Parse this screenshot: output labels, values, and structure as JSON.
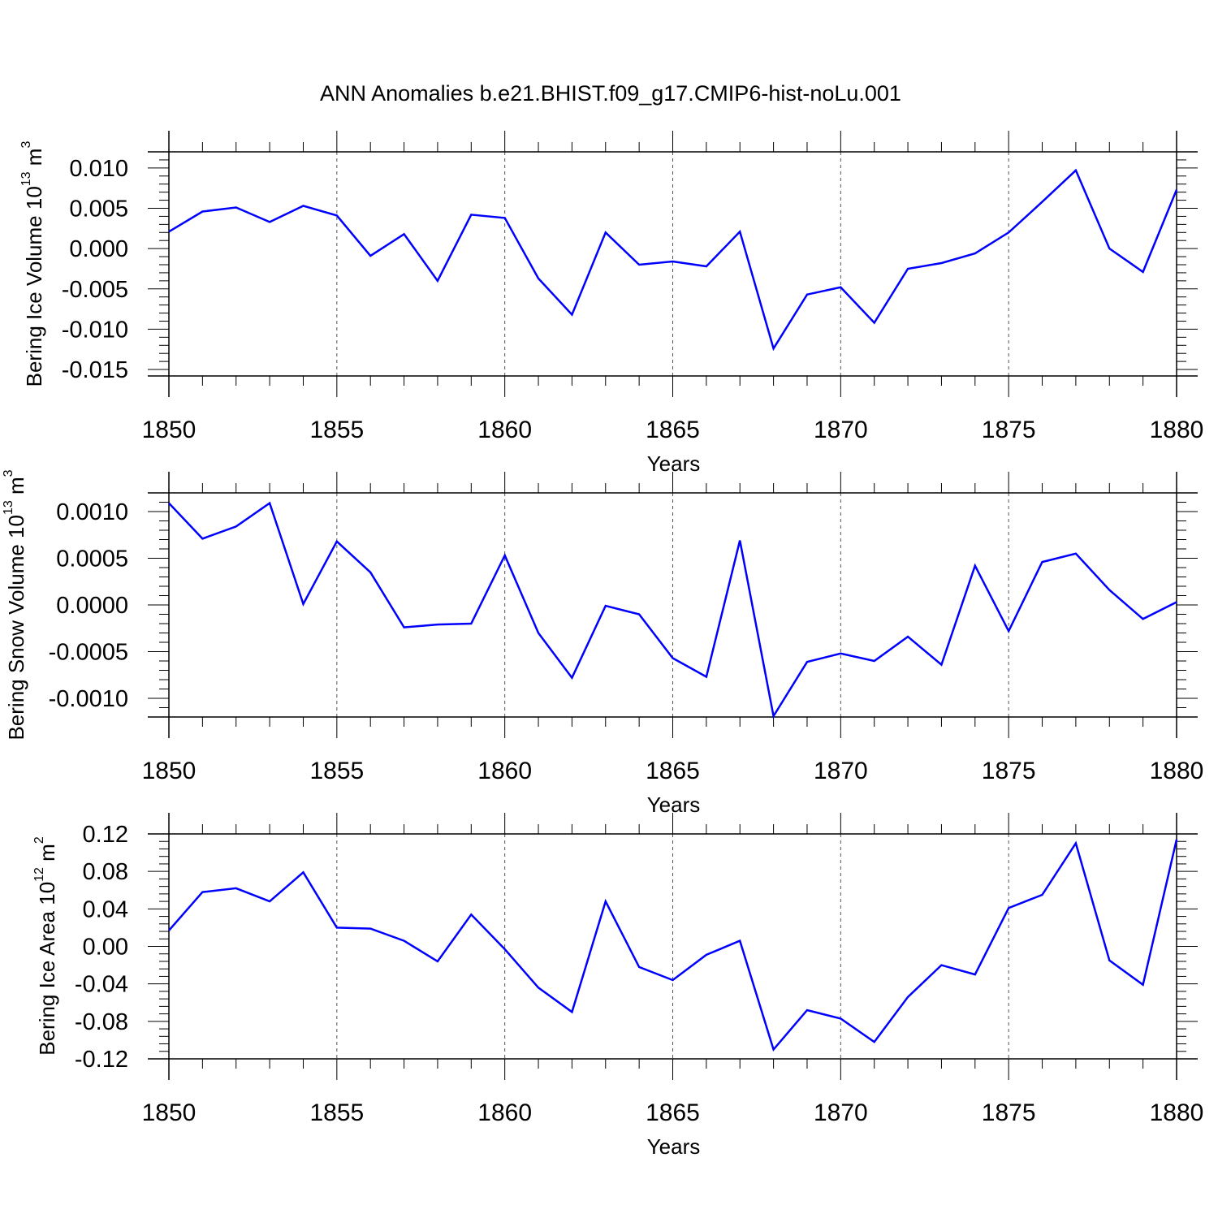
{
  "title": "ANN Anomalies b.e21.BHIST.f09_g17.CMIP6-hist-noLu.001",
  "colors": {
    "line": "#0000ff",
    "axis": "#000000",
    "grid": "#555555"
  },
  "chart_data": [
    {
      "type": "line",
      "ylabel": "Bering Ice Volume 10",
      "ylabel_sup": "13",
      "ylabel_unit": " m",
      "ylabel_unit_sup": "3",
      "xlabel": "Years",
      "xlim": [
        1850,
        1880
      ],
      "ylim": [
        -0.0158,
        0.012
      ],
      "yticks": [
        0.01,
        0.005,
        0.0,
        -0.005,
        -0.01,
        -0.015
      ],
      "ytick_labels": [
        "0.010",
        "0.005",
        "0.000",
        "-0.005",
        "-0.010",
        "-0.015"
      ],
      "xticks": [
        1850,
        1855,
        1860,
        1865,
        1870,
        1875,
        1880
      ],
      "xtick_labels": [
        "1850",
        "1855",
        "1860",
        "1865",
        "1870",
        "1875",
        "1880"
      ],
      "grid_x": true,
      "series": [
        {
          "name": "Bering Ice Volume",
          "x": [
            1850,
            1851,
            1852,
            1853,
            1854,
            1855,
            1856,
            1857,
            1858,
            1859,
            1860,
            1861,
            1862,
            1863,
            1864,
            1865,
            1866,
            1867,
            1868,
            1869,
            1870,
            1871,
            1872,
            1873,
            1874,
            1875,
            1876,
            1877,
            1878,
            1879,
            1880
          ],
          "values": [
            0.0021,
            0.0046,
            0.0051,
            0.0033,
            0.0053,
            0.0041,
            -0.0009,
            0.0018,
            -0.004,
            0.0042,
            0.0038,
            -0.0037,
            -0.0082,
            0.002,
            -0.002,
            -0.0016,
            -0.0022,
            0.0021,
            -0.0124,
            -0.0057,
            -0.0048,
            -0.0092,
            -0.0025,
            -0.0018,
            -0.0006,
            0.002,
            0.0058,
            0.0097,
            0.0,
            -0.0029,
            0.0073
          ]
        }
      ]
    },
    {
      "type": "line",
      "ylabel": "Bering Snow Volume 10",
      "ylabel_sup": "13",
      "ylabel_unit": " m",
      "ylabel_unit_sup": "3",
      "xlabel": "Years",
      "xlim": [
        1850,
        1880
      ],
      "ylim": [
        -0.0012,
        0.0012
      ],
      "yticks": [
        0.001,
        0.0005,
        0.0,
        -0.0005,
        -0.001
      ],
      "ytick_labels": [
        "0.0010",
        "0.0005",
        "0.0000",
        "-0.0005",
        "-0.0010"
      ],
      "xticks": [
        1850,
        1855,
        1860,
        1865,
        1870,
        1875,
        1880
      ],
      "xtick_labels": [
        "1850",
        "1855",
        "1860",
        "1865",
        "1870",
        "1875",
        "1880"
      ],
      "grid_x": true,
      "series": [
        {
          "name": "Bering Snow Volume",
          "x": [
            1850,
            1851,
            1852,
            1853,
            1854,
            1855,
            1856,
            1857,
            1858,
            1859,
            1860,
            1861,
            1862,
            1863,
            1864,
            1865,
            1866,
            1867,
            1868,
            1869,
            1870,
            1871,
            1872,
            1873,
            1874,
            1875,
            1876,
            1877,
            1878,
            1879,
            1880
          ],
          "values": [
            0.00109,
            0.00071,
            0.00084,
            0.00109,
            1e-05,
            0.00068,
            0.00035,
            -0.00024,
            -0.00021,
            -0.0002,
            0.00053,
            -0.0003,
            -0.00078,
            -1e-05,
            -0.0001,
            -0.00057,
            -0.00077,
            0.00069,
            -0.00119,
            -0.00061,
            -0.00052,
            -0.0006,
            -0.00034,
            -0.00064,
            0.00042,
            -0.00028,
            0.00046,
            0.00055,
            0.00016,
            -0.00015,
            3e-05
          ]
        }
      ]
    },
    {
      "type": "line",
      "ylabel": "Bering Ice Area 10",
      "ylabel_sup": "12",
      "ylabel_unit": " m",
      "ylabel_unit_sup": "2",
      "xlabel": "Years",
      "xlim": [
        1850,
        1880
      ],
      "ylim": [
        -0.12,
        0.12
      ],
      "yticks": [
        0.12,
        0.08,
        0.04,
        0.0,
        -0.04,
        -0.08,
        -0.12
      ],
      "ytick_labels": [
        "0.12",
        "0.08",
        "0.04",
        "0.00",
        "-0.04",
        "-0.08",
        "-0.12"
      ],
      "xticks": [
        1850,
        1855,
        1860,
        1865,
        1870,
        1875,
        1880
      ],
      "xtick_labels": [
        "1850",
        "1855",
        "1860",
        "1865",
        "1870",
        "1875",
        "1880"
      ],
      "grid_x": true,
      "series": [
        {
          "name": "Bering Ice Area",
          "x": [
            1850,
            1851,
            1852,
            1853,
            1854,
            1855,
            1856,
            1857,
            1858,
            1859,
            1860,
            1861,
            1862,
            1863,
            1864,
            1865,
            1866,
            1867,
            1868,
            1869,
            1870,
            1871,
            1872,
            1873,
            1874,
            1875,
            1876,
            1877,
            1878,
            1879,
            1880
          ],
          "values": [
            0.017,
            0.058,
            0.062,
            0.048,
            0.079,
            0.02,
            0.019,
            0.006,
            -0.016,
            0.034,
            -0.003,
            -0.044,
            -0.07,
            0.048,
            -0.022,
            -0.036,
            -0.009,
            0.006,
            -0.11,
            -0.068,
            -0.077,
            -0.102,
            -0.054,
            -0.02,
            -0.03,
            0.041,
            0.055,
            0.11,
            -0.015,
            -0.041,
            0.114
          ]
        }
      ]
    }
  ]
}
